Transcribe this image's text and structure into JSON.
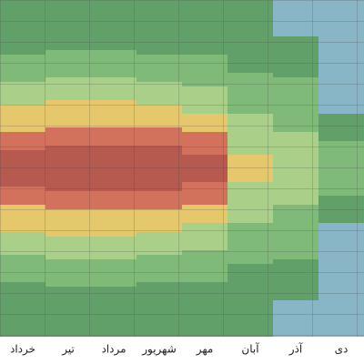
{
  "chart_data": {
    "type": "stream",
    "categories": [
      "خرداد",
      "تیر",
      "مرداد",
      "شهریور",
      "مهر",
      "آبان",
      "آذر",
      "دی"
    ],
    "ylim": [
      0,
      185
    ],
    "grid": true,
    "series": [
      {
        "color": "#b65a4f",
        "values": [
          20,
          25,
          25,
          25,
          15,
          0,
          0,
          0
        ]
      },
      {
        "color": "#d3725c",
        "values": [
          20,
          20,
          20,
          20,
          25,
          0,
          0,
          0
        ]
      },
      {
        "color": "#e6c86c",
        "values": [
          30,
          30,
          30,
          25,
          20,
          15,
          0,
          0
        ]
      },
      {
        "color": "#a9cf88",
        "values": [
          25,
          25,
          25,
          25,
          30,
          45,
          40,
          0
        ]
      },
      {
        "color": "#80ba78",
        "values": [
          30,
          30,
          30,
          30,
          35,
          45,
          60,
          30
        ]
      },
      {
        "color": "#62a06a",
        "values": [
          60,
          55,
          55,
          60,
          60,
          80,
          45,
          30
        ]
      },
      {
        "color": "#88b6c6",
        "values": [
          0,
          0,
          0,
          0,
          0,
          0,
          40,
          125
        ]
      }
    ]
  }
}
